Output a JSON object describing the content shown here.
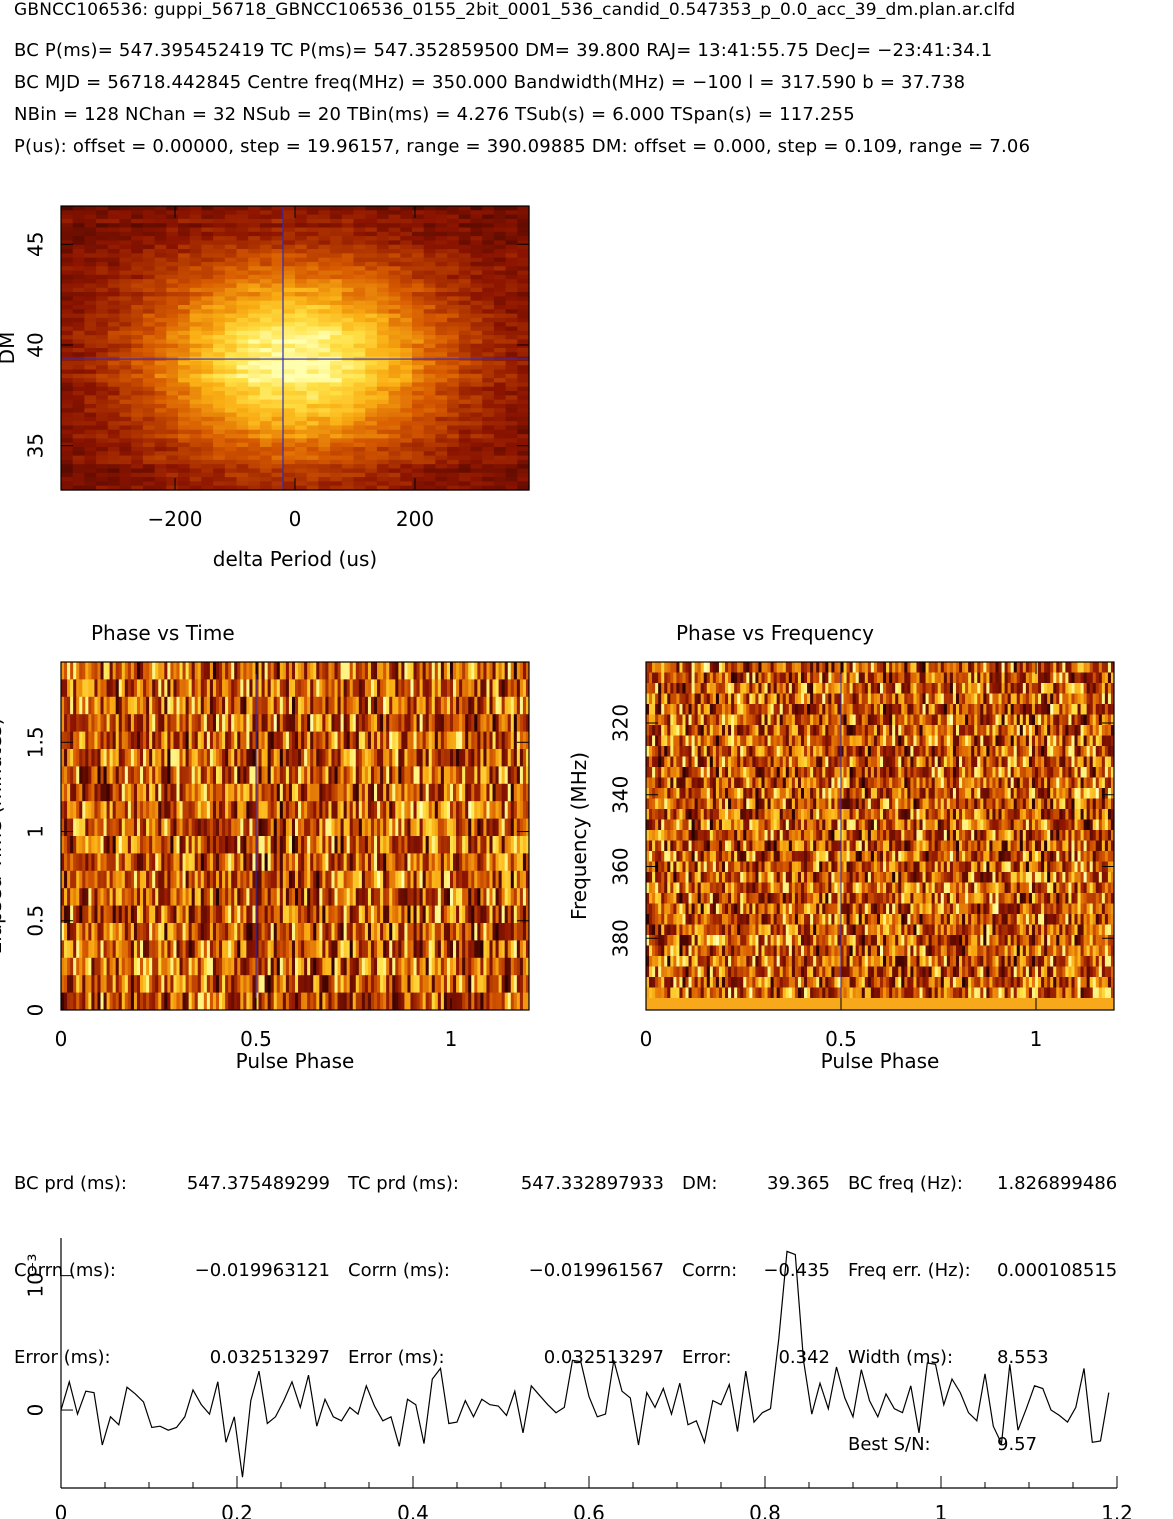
{
  "header": {
    "filename": "GBNCC106536: guppi_56718_GBNCC106536_0155_2bit_0001_536_candid_0.547353_p_0.0_acc_39_dm.plan.ar.clfd",
    "line1": "BC P(ms)= 547.395452419 TC P(ms)= 547.352859500 DM= 39.800 RAJ= 13:41:55.75 DecJ= −23:41:34.1",
    "line2": "BC MJD = 56718.442845 Centre freq(MHz) = 350.000 Bandwidth(MHz) = −100 l = 317.590 b = 37.738",
    "line3": "NBin = 128 NChan = 32 NSub = 20 TBin(ms) = 4.276 TSub(s) = 6.000 TSpan(s) = 117.255",
    "line4": "P(us): offset = 0.00000, step = 19.96157, range = 390.09885 DM: offset = 0.000, step = 0.109, range = 7.06"
  },
  "stats": {
    "col1": {
      "l1": "BC prd (ms):",
      "l2": "Corrn (ms):",
      "l3": "Error (ms):"
    },
    "col1v": {
      "l1": "547.375489299",
      "l2": "−0.019963121",
      "l3": "0.032513297"
    },
    "col2": {
      "l1": "TC prd (ms):",
      "l2": "Corrn (ms):",
      "l3": "Error (ms):"
    },
    "col2v": {
      "l1": "547.332897933",
      "l2": "−0.019961567",
      "l3": "0.032513297"
    },
    "col3": {
      "l1": "DM:",
      "l2": "Corrn:",
      "l3": "Error:"
    },
    "col3v": {
      "l1": "39.365",
      "l2": "−0.435",
      "l3": "0.342"
    },
    "col4": {
      "l1": "BC freq (Hz):",
      "l2": "Freq err. (Hz):",
      "l3": "Width (ms):",
      "l4": "Best S/N:"
    },
    "col4v": {
      "l1": "1.826899486",
      "l2": "0.000108515",
      "l3": "8.553",
      "l4": "9.57"
    }
  },
  "colors": {
    "line": "#000000",
    "marker": "#2d2dbf",
    "hot_low": "#3a0000",
    "hot_high": "#ffffb0"
  },
  "chart_data": [
    {
      "type": "heatmap",
      "title": "",
      "xlabel": "delta Period (us)",
      "ylabel": "DM",
      "xlim": [
        -390.1,
        390.1
      ],
      "ylim": [
        32.8,
        46.9
      ],
      "xticks": [
        {
          "v": -200,
          "label": "−200"
        },
        {
          "v": 0,
          "label": "0"
        },
        {
          "v": 200,
          "label": "200"
        }
      ],
      "yticks": [
        {
          "v": 35,
          "label": "35"
        },
        {
          "v": 40,
          "label": "40"
        },
        {
          "v": 45,
          "label": "45"
        }
      ],
      "best": {
        "x": -20,
        "y": 39.3
      },
      "peak": {
        "x": 0,
        "y": 39.2,
        "sx": 180,
        "sy": 3.4
      }
    },
    {
      "type": "heatmap",
      "title": "Phase vs Time",
      "xlabel": "Pulse Phase",
      "ylabel": "Elapsed Time (minutes)",
      "xlim": [
        0,
        1.2
      ],
      "ylim": [
        0,
        1.95
      ],
      "xticks": [
        {
          "v": 0,
          "label": "0"
        },
        {
          "v": 0.5,
          "label": "0.5"
        },
        {
          "v": 1,
          "label": "1"
        }
      ],
      "yticks": [
        {
          "v": 0,
          "label": "0"
        },
        {
          "v": 0.5,
          "label": "0.5"
        },
        {
          "v": 1,
          "label": "1"
        },
        {
          "v": 1.5,
          "label": "1.5"
        }
      ],
      "marker_x": 0.5
    },
    {
      "type": "heatmap",
      "title": "Phase vs Frequency",
      "xlabel": "Pulse Phase",
      "ylabel": "Frequency (MHz)",
      "xlim": [
        0,
        1.2
      ],
      "ylim": [
        400,
        303
      ],
      "xticks": [
        {
          "v": 0,
          "label": "0"
        },
        {
          "v": 0.5,
          "label": "0.5"
        },
        {
          "v": 1,
          "label": "1"
        }
      ],
      "yticks": [
        {
          "v": 320,
          "label": "320"
        },
        {
          "v": 340,
          "label": "340"
        },
        {
          "v": 360,
          "label": "360"
        },
        {
          "v": 380,
          "label": "380"
        }
      ],
      "marker_x": 0.5
    },
    {
      "type": "line",
      "title": "",
      "xlabel": "",
      "ylabel": "",
      "y_exponent_label": "10⁻³",
      "xlim": [
        0,
        1.2
      ],
      "ylim": [
        -0.00058,
        0.00128
      ],
      "xticks": [
        {
          "v": 0,
          "label": "0"
        },
        {
          "v": 0.2,
          "label": "0.2"
        },
        {
          "v": 0.4,
          "label": "0.4"
        },
        {
          "v": 0.6,
          "label": "0.6"
        },
        {
          "v": 0.8,
          "label": "0.8"
        },
        {
          "v": 1,
          "label": "1"
        },
        {
          "v": 1.2,
          "label": "1.2"
        }
      ],
      "yticks": [
        {
          "v": 0,
          "label": "0"
        },
        {
          "v": 0.001,
          "label": ""
        }
      ],
      "x": [
        0.0,
        0.00938,
        0.01875,
        0.02813,
        0.0375,
        0.04688,
        0.05625,
        0.06563,
        0.075,
        0.08438,
        0.09375,
        0.10313,
        0.1125,
        0.12188,
        0.13125,
        0.14063,
        0.15,
        0.15938,
        0.16875,
        0.17813,
        0.1875,
        0.19688,
        0.20625,
        0.21563,
        0.225,
        0.23438,
        0.24375,
        0.25313,
        0.2625,
        0.27188,
        0.28125,
        0.29063,
        0.3,
        0.30938,
        0.31875,
        0.32813,
        0.3375,
        0.34688,
        0.35625,
        0.36563,
        0.375,
        0.38438,
        0.39375,
        0.40313,
        0.4125,
        0.42188,
        0.43125,
        0.44063,
        0.45,
        0.45938,
        0.46875,
        0.47813,
        0.4875,
        0.49688,
        0.50625,
        0.51563,
        0.525,
        0.53438,
        0.54375,
        0.55313,
        0.5625,
        0.57188,
        0.58125,
        0.59063,
        0.6,
        0.60938,
        0.61875,
        0.62813,
        0.6375,
        0.64688,
        0.65625,
        0.66563,
        0.675,
        0.68438,
        0.69375,
        0.70313,
        0.7125,
        0.72188,
        0.73125,
        0.74063,
        0.75,
        0.75938,
        0.76875,
        0.77813,
        0.7875,
        0.79688,
        0.80625,
        0.81563,
        0.825,
        0.83438,
        0.84375,
        0.85313,
        0.8625,
        0.87188,
        0.88125,
        0.89063,
        0.9,
        0.90938,
        0.91875,
        0.92813,
        0.9375,
        0.94688,
        0.95625,
        0.96563,
        0.975,
        0.98438,
        0.99375,
        1.00313,
        1.0125,
        1.02188,
        1.03125,
        1.04063,
        1.05,
        1.05938,
        1.06875,
        1.07813,
        1.0875,
        1.09688,
        1.10625,
        1.11563,
        1.125,
        1.13438,
        1.14375,
        1.15313,
        1.1625,
        1.17188,
        1.18125,
        1.19063
      ],
      "values": [
        0.0,
        0.00021,
        -3e-05,
        0.00014,
        0.00013,
        -0.00026,
        -5e-05,
        -0.00011,
        0.00017,
        0.00012,
        6e-05,
        -0.00013,
        -0.00012,
        -0.00015,
        -0.00013,
        -5e-05,
        0.00015,
        4e-05,
        -3e-05,
        0.00021,
        -0.00024,
        -5e-05,
        -0.0005,
        7e-05,
        0.00029,
        -0.0001,
        -5e-05,
        7e-05,
        0.00021,
        2e-05,
        0.00026,
        -0.00012,
        8e-05,
        -5e-05,
        -8e-05,
        2e-05,
        -3e-05,
        0.00018,
        3e-05,
        -8e-05,
        -5e-05,
        -0.00027,
        8e-05,
        4e-05,
        -0.00025,
        0.00023,
        0.00031,
        -0.0001,
        -9e-05,
        7e-05,
        -5e-05,
        8e-05,
        4e-05,
        3e-05,
        -4e-05,
        0.00014,
        -0.00017,
        0.00018,
        0.00011,
        4e-05,
        -2e-05,
        2e-05,
        0.00037,
        0.00036,
        0.0001,
        -5e-05,
        -3e-05,
        0.00037,
        0.00014,
        9e-05,
        -0.00026,
        0.00013,
        2e-05,
        0.00016,
        -3e-05,
        0.0002,
        -0.00011,
        -8e-05,
        -0.00024,
        7e-05,
        4e-05,
        0.00019,
        -0.00016,
        0.00029,
        -9e-05,
        -2e-05,
        1e-05,
        0.00017,
        0.00013,
        0.00012,
        0.00037,
        -3e-05,
        0.0002,
        1e-05,
        0.00032,
        9e-05,
        -5e-05,
        0.0003,
        7e-05,
        -5e-05,
        0.00012,
        1e-05,
        -2e-05,
        0.00018,
        -0.00017,
        0.00035,
        0.00034,
        4e-05,
        0.00023,
        0.00013,
        -2e-05,
        -8e-05,
        0.00027,
        -0.00012,
        -0.00025,
        0.00034,
        -0.00015,
        1e-05,
        0.00018,
        0.00016,
        0.0,
        -4e-05,
        -9e-05,
        2e-05,
        0.00031,
        -0.00024,
        -0.00023,
        0.00013
      ],
      "peak_override": {
        "index": 88,
        "value": 0.00118
      }
    }
  ]
}
